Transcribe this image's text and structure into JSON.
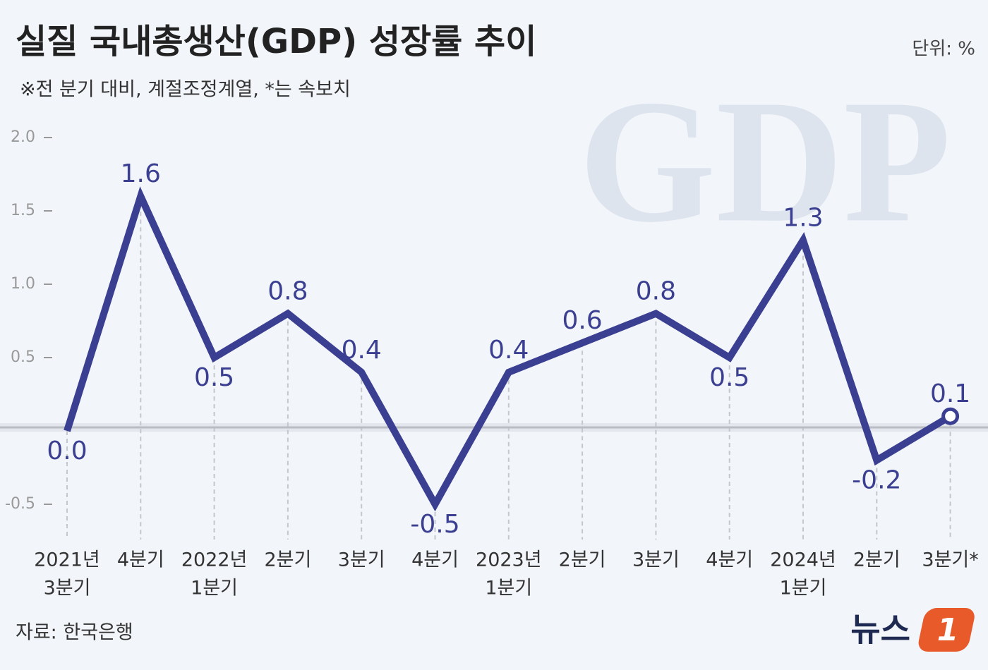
{
  "chart_data": {
    "type": "line",
    "title": "실질 국내총생산(GDP) 성장률 추이",
    "subtitle": "※전 분기 대비, 계절조정계열, *는 속보치",
    "unit": "단위: %",
    "source": "자료: 한국은행",
    "categories": [
      [
        "2021년",
        "3분기"
      ],
      [
        "4분기"
      ],
      [
        "2022년",
        "1분기"
      ],
      [
        "2분기"
      ],
      [
        "3분기"
      ],
      [
        "4분기"
      ],
      [
        "2023년",
        "1분기"
      ],
      [
        "2분기"
      ],
      [
        "3분기"
      ],
      [
        "4분기"
      ],
      [
        "2024년",
        "1분기"
      ],
      [
        "2분기"
      ],
      [
        "3분기*"
      ]
    ],
    "series": [
      {
        "color": "#3a3f91",
        "values": [
          0,
          1.6,
          0.5,
          0.8,
          0.4,
          -0.5,
          0.4,
          0.6,
          0.8,
          0.5,
          1.3,
          -0.2,
          0.1
        ],
        "value_labels": [
          "0.0",
          "1.6",
          "0.5",
          "0.8",
          "0.4",
          "-0.5",
          "0.4",
          "0.6",
          "0.8",
          "0.5",
          "1.3",
          "-0.2",
          "0.1"
        ]
      }
    ],
    "ylim": [
      -0.5,
      2.0
    ],
    "yticks": [
      {
        "value": 2,
        "label": "2.0"
      },
      1.5,
      {
        "value": 1,
        "label": "1.0"
      },
      0.5,
      -0.5
    ]
  },
  "branding": {
    "watermark": "GDP",
    "logo_text": "뉴스",
    "logo_number": "1"
  }
}
